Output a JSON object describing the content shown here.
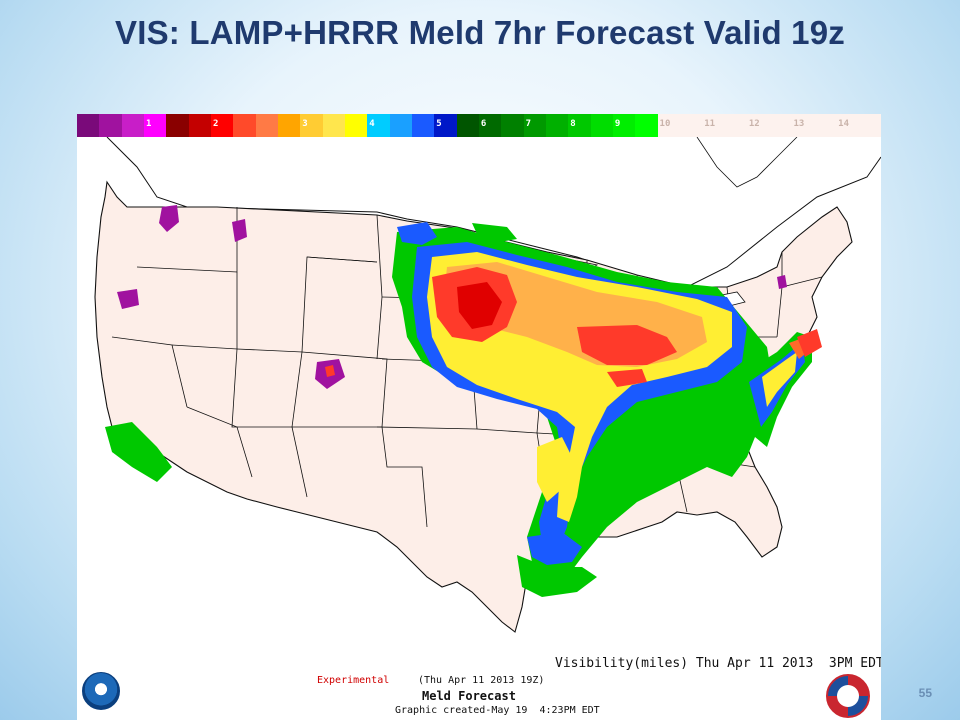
{
  "title": "VIS: LAMP+HRRR Meld 7hr Forecast Valid 19z",
  "legend": {
    "cells": [
      {
        "color": "#7a0a7a",
        "label": ""
      },
      {
        "color": "#a0129f",
        "label": ""
      },
      {
        "color": "#c81ec8",
        "label": ""
      },
      {
        "color": "#ff00ff",
        "label": "1"
      },
      {
        "color": "#8a0000",
        "label": ""
      },
      {
        "color": "#c40000",
        "label": ""
      },
      {
        "color": "#ff0000",
        "label": "2"
      },
      {
        "color": "#ff4a2a",
        "label": ""
      },
      {
        "color": "#ff7a45",
        "label": ""
      },
      {
        "color": "#ffa500",
        "label": ""
      },
      {
        "color": "#ffcc33",
        "label": "3"
      },
      {
        "color": "#ffe64d",
        "label": ""
      },
      {
        "color": "#ffff00",
        "label": ""
      },
      {
        "color": "#00ccff",
        "label": "4"
      },
      {
        "color": "#1aa0ff",
        "label": ""
      },
      {
        "color": "#1a5aff",
        "label": ""
      },
      {
        "color": "#0018c8",
        "label": "5"
      },
      {
        "color": "#005500",
        "label": ""
      },
      {
        "color": "#006a00",
        "label": "6"
      },
      {
        "color": "#008000",
        "label": ""
      },
      {
        "color": "#009900",
        "label": "7"
      },
      {
        "color": "#00b000",
        "label": ""
      },
      {
        "color": "#00c800",
        "label": "8"
      },
      {
        "color": "#00dd00",
        "label": ""
      },
      {
        "color": "#00ee00",
        "label": "9"
      },
      {
        "color": "#00ff00",
        "label": ""
      },
      {
        "color": "#fdf2ee",
        "label": "10"
      },
      {
        "color": "#fdf2ee",
        "label": ""
      },
      {
        "color": "#fdf2ee",
        "label": "11"
      },
      {
        "color": "#fdf2ee",
        "label": ""
      },
      {
        "color": "#fdf2ee",
        "label": "12"
      },
      {
        "color": "#fdf2ee",
        "label": ""
      },
      {
        "color": "#fdf2ee",
        "label": "13"
      },
      {
        "color": "#fdf2ee",
        "label": ""
      },
      {
        "color": "#fdf2ee",
        "label": "14"
      },
      {
        "color": "#fdf2ee",
        "label": ""
      }
    ]
  },
  "map": {
    "background": "#ffffff",
    "land_fill": "#fdeee8",
    "outline_color": "#111111"
  },
  "footer": {
    "experimental": "Experimental",
    "issue": "(Thu Apr 11 2013 19Z)",
    "product": "Meld Forecast",
    "created": "Graphic created-May 19  4:23PM EDT",
    "valid": "Visibility(miles) Thu Apr 11 2013  3PM EDT"
  },
  "page_number": "55",
  "logos": {
    "left": "noaa-icon",
    "right": "nws-icon"
  }
}
